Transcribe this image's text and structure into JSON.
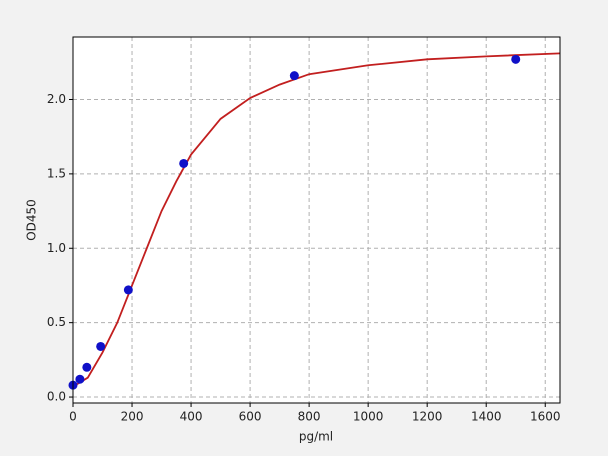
{
  "chart_data": {
    "type": "scatter",
    "xlabel": "pg/ml",
    "ylabel": "OD450",
    "xlim": [
      0,
      1650
    ],
    "ylim": [
      -0.04,
      2.42
    ],
    "xticks": [
      0,
      200,
      400,
      600,
      800,
      1000,
      1200,
      1400,
      1600
    ],
    "yticks": [
      {
        "value": 0,
        "label": "0.0"
      },
      0.5,
      {
        "value": 1,
        "label": "1.0"
      },
      1.5,
      {
        "value": 2,
        "label": "2.0"
      }
    ],
    "grid": true,
    "series": [
      {
        "style": "line",
        "color": "#c21f1f",
        "x": [
          0,
          50,
          100,
          150,
          200,
          250,
          300,
          350,
          400,
          500,
          600,
          700,
          800,
          1000,
          1200,
          1400,
          1650
        ],
        "values": [
          0.07,
          0.13,
          0.3,
          0.5,
          0.75,
          1.0,
          1.25,
          1.45,
          1.63,
          1.87,
          2.01,
          2.1,
          2.17,
          2.23,
          2.27,
          2.29,
          2.31
        ]
      },
      {
        "style": "markers",
        "color": "#1010c8",
        "x": [
          0,
          23.4,
          46.9,
          93.75,
          187.5,
          375,
          750,
          1500
        ],
        "values": [
          0.08,
          0.12,
          0.2,
          0.34,
          0.72,
          1.57,
          2.16,
          2.27
        ]
      }
    ]
  }
}
